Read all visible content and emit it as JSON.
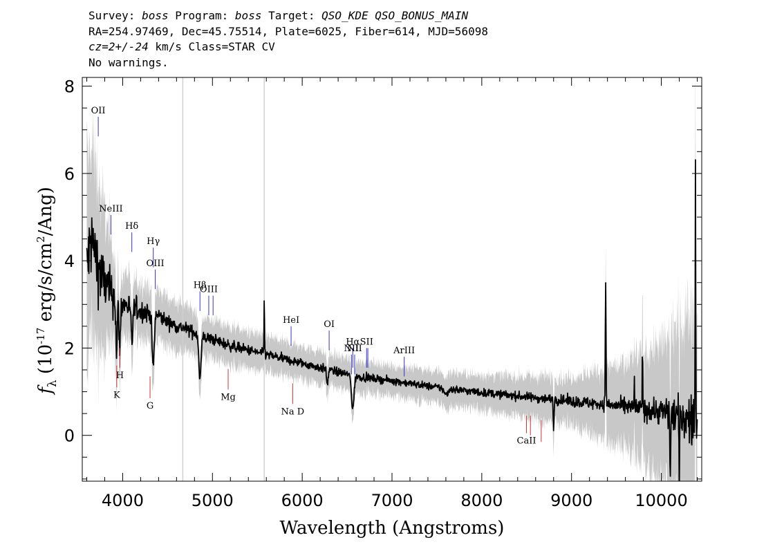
{
  "header": {
    "survey_prefix": "Survey: ",
    "survey": "boss",
    "program_prefix": " Program: ",
    "program": "boss",
    "target_prefix": " Target: ",
    "target": "QSO_KDE QSO_BONUS_MAIN",
    "line2": "RA=254.97469, Dec=45.75514, Plate=6025, Fiber=614, MJD=56098",
    "redshift": "cz=2+/-24",
    "line3_rest": " km/s Class=STAR CV",
    "line4": "No warnings."
  },
  "colors": {
    "spectrum": "#000000",
    "error_band": "#c8c8c8",
    "emission_marker": "#3333cc",
    "absorption_marker": "#cc3333"
  },
  "chart_data": {
    "type": "line",
    "xlabel": "Wavelength (Angstroms)",
    "ylabel": "f_λ (10^-17 erg/s/cm^2/Ang)",
    "xlim": [
      3550,
      10450
    ],
    "ylim": [
      -1.05,
      8.2
    ],
    "xticks": [
      4000,
      5000,
      6000,
      7000,
      8000,
      9000,
      10000
    ],
    "yticks": [
      0,
      2,
      4,
      6,
      8
    ],
    "emission_lines": [
      {
        "label": "OII",
        "x": 3728,
        "y1": 6.85,
        "y2": 7.3
      },
      {
        "label": "NeIII",
        "x": 3869,
        "y1": 4.6,
        "y2": 5.05
      },
      {
        "label": "Hδ",
        "x": 4102,
        "y1": 4.2,
        "y2": 4.65
      },
      {
        "label": "Hγ",
        "x": 4341,
        "y1": 3.85,
        "y2": 4.3
      },
      {
        "label": "OIII",
        "x": 4363,
        "y1": 3.35,
        "y2": 3.8
      },
      {
        "label": "Hβ",
        "x": 4861,
        "y1": 2.85,
        "y2": 3.3
      },
      {
        "label": "OIII",
        "x": 4959,
        "y1": 2.75,
        "y2": 3.2
      },
      {
        "label": "",
        "x": 5007,
        "y1": 2.75,
        "y2": 3.2
      },
      {
        "label": "HeI",
        "x": 5876,
        "y1": 2.05,
        "y2": 2.5
      },
      {
        "label": "OI",
        "x": 6300,
        "y1": 1.95,
        "y2": 2.4
      },
      {
        "label": "NII",
        "x": 6548,
        "y1": 1.4,
        "y2": 1.85
      },
      {
        "label": "Hα",
        "x": 6563,
        "y1": 1.55,
        "y2": 2.0
      },
      {
        "label": "NII",
        "x": 6584,
        "y1": 1.4,
        "y2": 1.85
      },
      {
        "label": "SII",
        "x": 6717,
        "y1": 1.55,
        "y2": 2.0
      },
      {
        "label": "",
        "x": 6731,
        "y1": 1.55,
        "y2": 2.0
      },
      {
        "label": "ArIII",
        "x": 7136,
        "y1": 1.35,
        "y2": 1.8
      }
    ],
    "absorption_lines": [
      {
        "label": "K",
        "x": 3934,
        "y1": 1.1,
        "y2": 1.6
      },
      {
        "label": "H",
        "x": 3969,
        "y1": 1.55,
        "y2": 2.0
      },
      {
        "label": "G",
        "x": 4305,
        "y1": 0.85,
        "y2": 1.35
      },
      {
        "label": "Mg",
        "x": 5175,
        "y1": 1.05,
        "y2": 1.52
      },
      {
        "label": "Na D",
        "x": 5894,
        "y1": 0.72,
        "y2": 1.19
      },
      {
        "label": "CaII",
        "x": 8498,
        "y1": 0.05,
        "y2": 0.45
      },
      {
        "label": "",
        "x": 8542,
        "y1": 0.0,
        "y2": 0.45
      },
      {
        "label": "",
        "x": 8662,
        "y1": -0.15,
        "y2": 0.35
      }
    ],
    "series": [
      {
        "continuum_x": [
          3600,
          3650,
          3700,
          3750,
          3800,
          3850,
          3900,
          3950,
          4000,
          4100,
          4200,
          4300,
          4400,
          4500,
          4600,
          4700,
          4800,
          4900,
          5000,
          5200,
          5400,
          5600,
          5800,
          6000,
          6200,
          6400,
          6600,
          6800,
          7000,
          7500,
          8000,
          8500,
          9000,
          9500,
          10000,
          10200,
          10380
        ],
        "continuum_y": [
          3.8,
          4.5,
          4.1,
          3.7,
          3.5,
          3.3,
          3.2,
          3.1,
          3.0,
          2.95,
          2.85,
          2.8,
          2.75,
          2.6,
          2.5,
          2.45,
          2.35,
          2.25,
          2.2,
          2.05,
          1.95,
          1.85,
          1.75,
          1.65,
          1.55,
          1.45,
          1.35,
          1.3,
          1.25,
          1.1,
          0.98,
          0.88,
          0.78,
          0.68,
          0.55,
          0.45,
          0.3
        ],
        "features": [
          {
            "x": 3933,
            "depth": -1.3,
            "width": 8
          },
          {
            "x": 3968,
            "depth": -1.0,
            "width": 8
          },
          {
            "x": 4102,
            "depth": -0.8,
            "width": 10
          },
          {
            "x": 4340,
            "depth": -1.2,
            "width": 12
          },
          {
            "x": 4861,
            "depth": -1.0,
            "width": 12
          },
          {
            "x": 5577,
            "depth": 1.3,
            "width": 3
          },
          {
            "x": 6280,
            "depth": -0.35,
            "width": 8
          },
          {
            "x": 6563,
            "depth": -0.75,
            "width": 14
          },
          {
            "x": 7600,
            "depth": -0.15,
            "width": 20
          },
          {
            "x": 8800,
            "depth": -0.7,
            "width": 4
          },
          {
            "x": 9380,
            "depth": 2.7,
            "width": 4
          },
          {
            "x": 9700,
            "depth": 0.6,
            "width": 3
          },
          {
            "x": 9790,
            "depth": 1.2,
            "width": 3
          },
          {
            "x": 10100,
            "depth": -1.5,
            "width": 4
          },
          {
            "x": 10200,
            "depth": -1.5,
            "width": 4
          },
          {
            "x": 10380,
            "depth": 6.0,
            "width": 3
          }
        ],
        "noise_x": [
          3600,
          4000,
          4500,
          5500,
          7000,
          8500,
          9500,
          10000,
          10400
        ],
        "noise_amp": [
          1.4,
          0.45,
          0.22,
          0.16,
          0.12,
          0.14,
          0.22,
          0.45,
          0.9
        ],
        "error_x": [
          3600,
          4000,
          5000,
          6000,
          7000,
          8000,
          9000,
          9500,
          10000,
          10400
        ],
        "error_amp": [
          2.5,
          0.7,
          0.45,
          0.38,
          0.35,
          0.4,
          0.55,
          0.9,
          1.5,
          2.8
        ]
      }
    ],
    "vertical_artifacts": [
      {
        "x": 4670
      },
      {
        "x": 5577
      }
    ]
  }
}
